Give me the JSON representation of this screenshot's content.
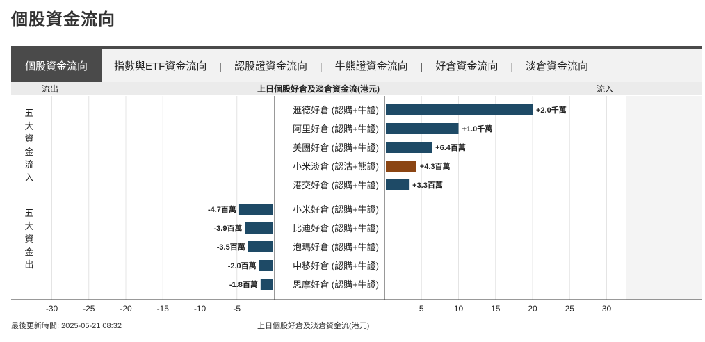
{
  "page": {
    "title": "個股資金流向"
  },
  "tabs": [
    {
      "label": "個股資金流向",
      "active": true
    },
    {
      "label": "指數與ETF資金流向",
      "active": false
    },
    {
      "label": "認股證資金流向",
      "active": false
    },
    {
      "label": "牛熊證資金流向",
      "active": false
    },
    {
      "label": "好倉資金流向",
      "active": false
    },
    {
      "label": "淡倉資金流向",
      "active": false
    }
  ],
  "tab_separator": "|",
  "header": {
    "outflow": "流出",
    "center": "上日個股好倉及淡倉資金流(港元)",
    "inflow": "流入"
  },
  "side_labels": {
    "inflow": "五大資金流入",
    "outflow": "五大資金出"
  },
  "footer": {
    "updated": "最後更新時間: 2025-05-21 08:32",
    "caption": "上日個股好倉及淡倉資金流(港元)"
  },
  "colors": {
    "long": "#1e4a66",
    "short": "#8b4513",
    "grid": "#e4e4e4",
    "axis": "#333333"
  },
  "chart_data": {
    "type": "bar",
    "orientation": "horizontal",
    "unit": "百萬港元",
    "xlim": [
      -35,
      35
    ],
    "xticks": [
      -30,
      -25,
      -20,
      -15,
      -10,
      -5,
      5,
      10,
      15,
      20,
      25,
      30
    ],
    "grid": true,
    "inflow": [
      {
        "label": "滙德好倉 (認購+牛證)",
        "value": 20.0,
        "display": "+2.0千萬",
        "side": "long"
      },
      {
        "label": "阿里好倉 (認購+牛證)",
        "value": 10.0,
        "display": "+1.0千萬",
        "side": "long"
      },
      {
        "label": "美團好倉 (認購+牛證)",
        "value": 6.4,
        "display": "+6.4百萬",
        "side": "long"
      },
      {
        "label": "小米淡倉 (認沽+熊證)",
        "value": 4.3,
        "display": "+4.3百萬",
        "side": "short"
      },
      {
        "label": "港交好倉 (認購+牛證)",
        "value": 3.3,
        "display": "+3.3百萬",
        "side": "long"
      }
    ],
    "outflow": [
      {
        "label": "小米好倉 (認購+牛證)",
        "value": -4.7,
        "display": "-4.7百萬",
        "side": "long"
      },
      {
        "label": "比迪好倉 (認購+牛證)",
        "value": -3.9,
        "display": "-3.9百萬",
        "side": "long"
      },
      {
        "label": "泡瑪好倉 (認購+牛證)",
        "value": -3.5,
        "display": "-3.5百萬",
        "side": "long"
      },
      {
        "label": "中移好倉 (認購+牛證)",
        "value": -2.0,
        "display": "-2.0百萬",
        "side": "long"
      },
      {
        "label": "思摩好倉 (認購+牛證)",
        "value": -1.8,
        "display": "-1.8百萬",
        "side": "long"
      }
    ]
  }
}
